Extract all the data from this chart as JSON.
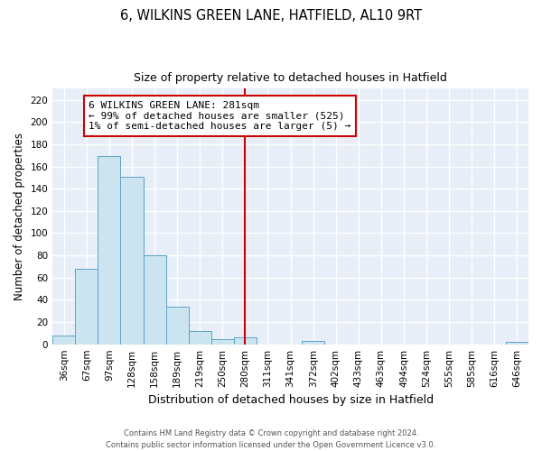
{
  "title": "6, WILKINS GREEN LANE, HATFIELD, AL10 9RT",
  "subtitle": "Size of property relative to detached houses in Hatfield",
  "xlabel": "Distribution of detached houses by size in Hatfield",
  "ylabel": "Number of detached properties",
  "bar_labels": [
    "36sqm",
    "67sqm",
    "97sqm",
    "128sqm",
    "158sqm",
    "189sqm",
    "219sqm",
    "250sqm",
    "280sqm",
    "311sqm",
    "341sqm",
    "372sqm",
    "402sqm",
    "433sqm",
    "463sqm",
    "494sqm",
    "524sqm",
    "555sqm",
    "585sqm",
    "616sqm",
    "646sqm"
  ],
  "bar_values": [
    8,
    68,
    169,
    151,
    80,
    34,
    12,
    5,
    6,
    0,
    0,
    3,
    0,
    0,
    0,
    0,
    0,
    0,
    0,
    0,
    2
  ],
  "bar_color": "#cce4f0",
  "bar_edge_color": "#5ba3c9",
  "ylim": [
    0,
    230
  ],
  "yticks": [
    0,
    20,
    40,
    60,
    80,
    100,
    120,
    140,
    160,
    180,
    200,
    220
  ],
  "vline_x_index": 8,
  "vline_color": "#cc0000",
  "annotation_title": "6 WILKINS GREEN LANE: 281sqm",
  "annotation_line1": "← 99% of detached houses are smaller (525)",
  "annotation_line2": "1% of semi-detached houses are larger (5) →",
  "annotation_box_facecolor": "#ffffff",
  "annotation_box_edgecolor": "#cc0000",
  "footer_line1": "Contains HM Land Registry data © Crown copyright and database right 2024.",
  "footer_line2": "Contains public sector information licensed under the Open Government Licence v3.0.",
  "background_color": "#ffffff",
  "plot_bg_color": "#e8eef8",
  "grid_color": "#ffffff",
  "title_fontsize": 10.5,
  "subtitle_fontsize": 9,
  "tick_fontsize": 7.5,
  "ylabel_fontsize": 8.5,
  "xlabel_fontsize": 9
}
